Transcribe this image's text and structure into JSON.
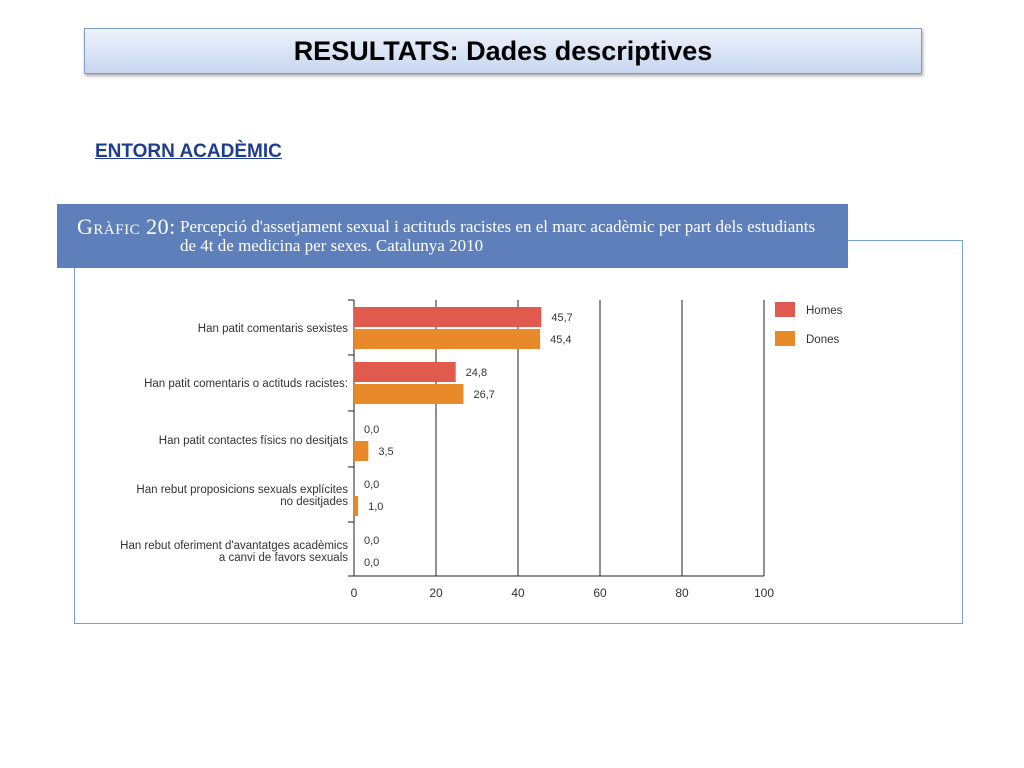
{
  "slide": {
    "title": "RESULTATS: Dades descriptives",
    "section": "ENTORN ACADÈMIC"
  },
  "chart_header": {
    "label": "Gràfic 20:",
    "text": "Percepció d'assetjament sexual i actituds racistes en el marc acadèmic per part dels estudiants de 4t de medicina per sexes. Catalunya 2010"
  },
  "colors": {
    "homes": "#e05a4e",
    "dones": "#e8892a",
    "header_bg": "#5e7fb9"
  },
  "chart_data": {
    "type": "bar",
    "orientation": "horizontal",
    "categories": [
      [
        "Han patit comentaris sexistes"
      ],
      [
        "Han patit comentaris o actituds racistes:"
      ],
      [
        "Han patit contactes físics no desitjats"
      ],
      [
        "Han rebut proposicions sexuals explícites",
        "no desitjades"
      ],
      [
        "Han rebut oferiment d'avantatges acadèmics",
        "a canvi de favors sexuals"
      ]
    ],
    "series": [
      {
        "name": "Homes",
        "values": [
          45.7,
          24.8,
          0.0,
          0.0,
          0.0
        ],
        "labels": [
          "45,7",
          "24,8",
          "0,0",
          "0,0",
          "0,0"
        ]
      },
      {
        "name": "Dones",
        "values": [
          45.4,
          26.7,
          3.5,
          1.0,
          0.0
        ],
        "labels": [
          "45,4",
          "26,7",
          "3,5",
          "1,0",
          "0,0"
        ]
      }
    ],
    "xlim": [
      0,
      100
    ],
    "xticks": [
      0,
      20,
      40,
      60,
      80,
      100
    ],
    "grid": true,
    "legend": "top-right"
  }
}
